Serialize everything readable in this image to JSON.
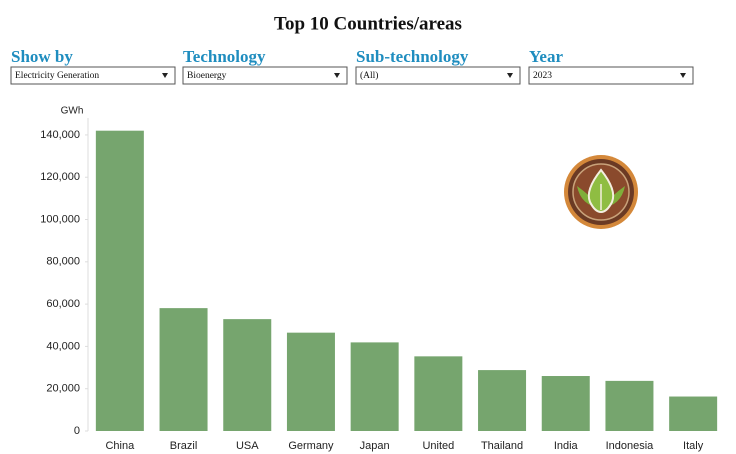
{
  "filters": [
    {
      "label": "Show  by",
      "value": "Electricity Generation"
    },
    {
      "label": "Technology",
      "value": "Bioenergy"
    },
    {
      "label": "Sub-technology",
      "value": "(All)"
    },
    {
      "label": "Year",
      "value": "2023"
    }
  ],
  "chart_data": {
    "type": "bar",
    "title": "Top 10 Countries/areas",
    "y_label": "GWh",
    "categories": [
      "China",
      "Brazil",
      "USA",
      "Germany",
      "Japan",
      "United",
      "Thailand",
      "India",
      "Indonesia",
      "Italy"
    ],
    "values": [
      142000,
      58100,
      52900,
      46500,
      41900,
      35300,
      28800,
      26000,
      23700,
      16300
    ],
    "color": "#76a56e",
    "ylim": [
      0,
      148000
    ],
    "yticks": [
      0,
      {
        "value": 20000,
        "label": "20,000"
      },
      {
        "value": 40000,
        "label": "40,000"
      },
      {
        "value": 60000,
        "label": "60,000"
      },
      {
        "value": 80000,
        "label": "80,000"
      },
      {
        "value": 100000,
        "label": "100,000"
      },
      {
        "value": 120000,
        "label": "120,000"
      },
      {
        "value": 140000,
        "label": "140,000"
      }
    ],
    "grid": false
  }
}
